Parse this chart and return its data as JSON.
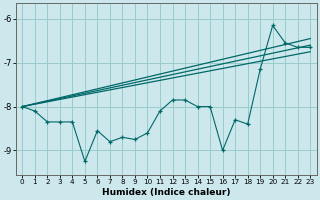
{
  "xlabel": "Humidex (Indice chaleur)",
  "bg_color": "#cce8ec",
  "line_color": "#006868",
  "grid_color": "#99cccc",
  "xlim": [
    -0.5,
    23.5
  ],
  "ylim": [
    -9.55,
    -5.65
  ],
  "yticks": [
    -9,
    -8,
    -7,
    -6
  ],
  "xticks": [
    0,
    1,
    2,
    3,
    4,
    5,
    6,
    7,
    8,
    9,
    10,
    11,
    12,
    13,
    14,
    15,
    16,
    17,
    18,
    19,
    20,
    21,
    22,
    23
  ],
  "zigzag_x": [
    0,
    1,
    2,
    3,
    4,
    5,
    6,
    7,
    8,
    9,
    10,
    11,
    12,
    13,
    14,
    15,
    16,
    17,
    18,
    19,
    20,
    21,
    22,
    23
  ],
  "zigzag_y": [
    -8.0,
    -8.1,
    -8.35,
    -8.35,
    -8.35,
    -9.25,
    -8.55,
    -8.8,
    -8.7,
    -8.75,
    -8.6,
    -8.1,
    -7.85,
    -7.85,
    -8.0,
    -8.0,
    -9.0,
    -8.3,
    -8.4,
    -7.15,
    -6.15,
    -6.55,
    -6.65,
    -6.65
  ],
  "diag_lines": [
    {
      "x0": 0,
      "y0": -8.0,
      "x1": 23,
      "y1": -6.45
    },
    {
      "x0": 0,
      "y0": -8.0,
      "x1": 23,
      "y1": -6.6
    },
    {
      "x0": 0,
      "y0": -8.0,
      "x1": 23,
      "y1": -6.75
    }
  ]
}
